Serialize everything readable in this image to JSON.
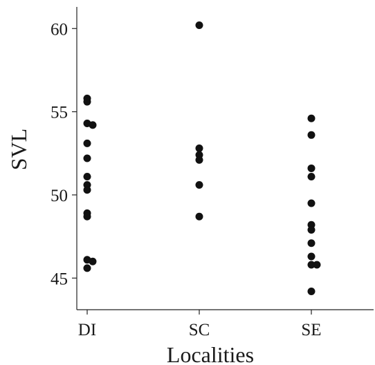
{
  "chart_data": {
    "type": "scatter",
    "xlabel": "Localities",
    "ylabel": "SVL",
    "categories": [
      "DI",
      "SC",
      "SE"
    ],
    "ylim": [
      43.1,
      61.3
    ],
    "yticks": [
      45,
      50,
      55,
      60
    ],
    "grid": false,
    "legend": "none",
    "marker_color": "#111111",
    "series": [
      {
        "category": "DI",
        "points": [
          {
            "offset": 0,
            "y": 55.8
          },
          {
            "offset": 0,
            "y": 55.6
          },
          {
            "offset": 0,
            "y": 54.3
          },
          {
            "offset": 0.2,
            "y": 54.2
          },
          {
            "offset": 0,
            "y": 53.1
          },
          {
            "offset": 0,
            "y": 52.2
          },
          {
            "offset": 0,
            "y": 51.1
          },
          {
            "offset": 0,
            "y": 50.6
          },
          {
            "offset": 0,
            "y": 50.3
          },
          {
            "offset": 0,
            "y": 48.9
          },
          {
            "offset": 0,
            "y": 48.7
          },
          {
            "offset": 0,
            "y": 46.1
          },
          {
            "offset": 0.2,
            "y": 46.0
          },
          {
            "offset": 0,
            "y": 45.6
          }
        ]
      },
      {
        "category": "SC",
        "points": [
          {
            "offset": 0,
            "y": 60.2
          },
          {
            "offset": 0,
            "y": 52.8
          },
          {
            "offset": 0,
            "y": 52.4
          },
          {
            "offset": 0,
            "y": 52.1
          },
          {
            "offset": 0,
            "y": 50.6
          },
          {
            "offset": 0,
            "y": 48.7
          }
        ]
      },
      {
        "category": "SE",
        "points": [
          {
            "offset": 0,
            "y": 54.6
          },
          {
            "offset": 0,
            "y": 53.6
          },
          {
            "offset": 0,
            "y": 51.6
          },
          {
            "offset": 0,
            "y": 51.1
          },
          {
            "offset": 0,
            "y": 49.5
          },
          {
            "offset": 0,
            "y": 48.2
          },
          {
            "offset": 0,
            "y": 47.9
          },
          {
            "offset": 0,
            "y": 47.1
          },
          {
            "offset": 0,
            "y": 46.3
          },
          {
            "offset": 0,
            "y": 45.8
          },
          {
            "offset": 0.2,
            "y": 45.8
          },
          {
            "offset": 0,
            "y": 44.2
          }
        ]
      }
    ]
  }
}
